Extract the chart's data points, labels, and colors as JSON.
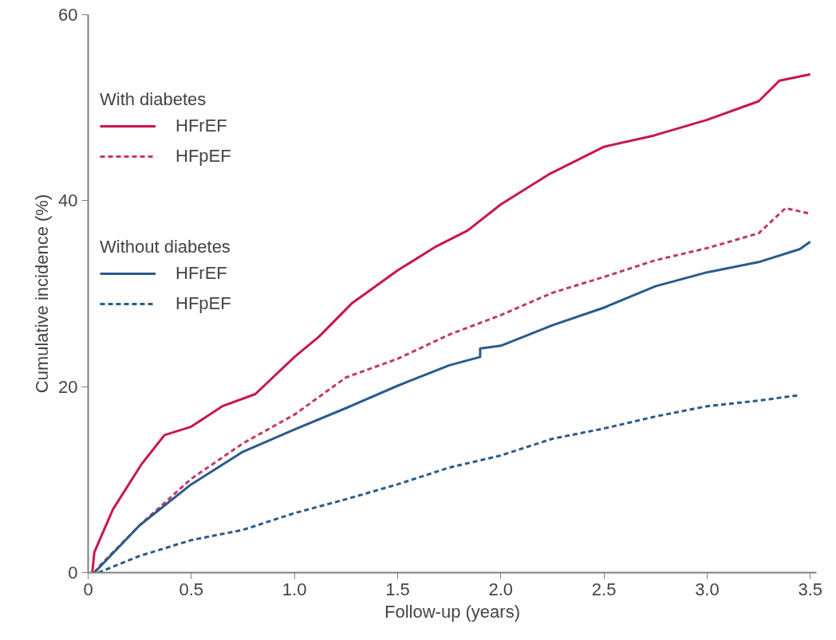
{
  "chart_data": {
    "type": "line",
    "xlabel": "Follow-up (years)",
    "ylabel": "Cumulative incidence (%)",
    "xlim": [
      0,
      3.53
    ],
    "ylim": [
      0,
      60
    ],
    "xticks": [
      0,
      0.5,
      {
        "value": 1,
        "label": "1.0"
      },
      1.5,
      {
        "value": 2,
        "label": "2.0"
      },
      2.5,
      {
        "value": 3,
        "label": "3.0"
      },
      3.5
    ],
    "yticks": [
      0,
      20,
      40,
      60
    ],
    "grid": false,
    "legend": "top left",
    "marker": "none",
    "annotations": [
      "With diabetes",
      "Without diabetes"
    ],
    "series": [
      {
        "name": "HFrEF",
        "color": "#c8174a",
        "line_style": "solid",
        "x": [
          0.02,
          0.03,
          0.12,
          0.26,
          0.37,
          0.5,
          0.65,
          0.81,
          1.0,
          1.12,
          1.28,
          1.5,
          1.68,
          1.84,
          2.0,
          2.23,
          2.5,
          2.74,
          3.0,
          3.25,
          3.35,
          3.5
        ],
        "values": [
          0,
          2.2,
          6.8,
          11.7,
          14.8,
          15.7,
          17.9,
          19.2,
          23.2,
          25.4,
          29.0,
          32.5,
          35.0,
          36.8,
          39.6,
          42.8,
          45.8,
          47.0,
          48.7,
          50.7,
          52.9,
          53.6
        ]
      },
      {
        "name": "HFpEF",
        "color": "#c23a62",
        "line_style": "dashed",
        "x": [
          0.03,
          0.05,
          0.25,
          0.5,
          0.75,
          1.0,
          1.25,
          1.5,
          1.75,
          2.0,
          2.25,
          2.5,
          2.75,
          3.0,
          3.25,
          3.38,
          3.5
        ],
        "values": [
          0,
          0.6,
          5.1,
          10.1,
          13.9,
          17.0,
          21.0,
          23.0,
          25.6,
          27.7,
          30.1,
          31.8,
          33.6,
          34.9,
          36.5,
          39.2,
          38.6
        ]
      },
      {
        "name": "HFrEF",
        "color": "#2a5b8c",
        "line_style": "solid",
        "x": [
          0.03,
          0.25,
          0.5,
          0.75,
          1.0,
          1.25,
          1.5,
          1.75,
          1.9,
          1.9,
          2.0,
          2.25,
          2.5,
          2.75,
          3.0,
          3.25,
          3.45,
          3.5
        ],
        "values": [
          0,
          5.1,
          9.5,
          13.0,
          15.4,
          17.7,
          20.1,
          22.3,
          23.2,
          24.1,
          24.4,
          26.6,
          28.5,
          30.8,
          32.3,
          33.4,
          34.8,
          35.6
        ]
      },
      {
        "name": "HFpEF",
        "color": "#2a5b8c",
        "line_style": "dashed",
        "x": [
          0.05,
          0.25,
          0.5,
          0.75,
          1.0,
          1.25,
          1.5,
          1.75,
          2.0,
          2.25,
          2.5,
          2.75,
          3.0,
          3.25,
          3.45
        ],
        "values": [
          0,
          1.8,
          3.5,
          4.6,
          6.4,
          7.9,
          9.5,
          11.3,
          12.6,
          14.4,
          15.5,
          16.8,
          17.9,
          18.5,
          19.1
        ]
      }
    ]
  }
}
